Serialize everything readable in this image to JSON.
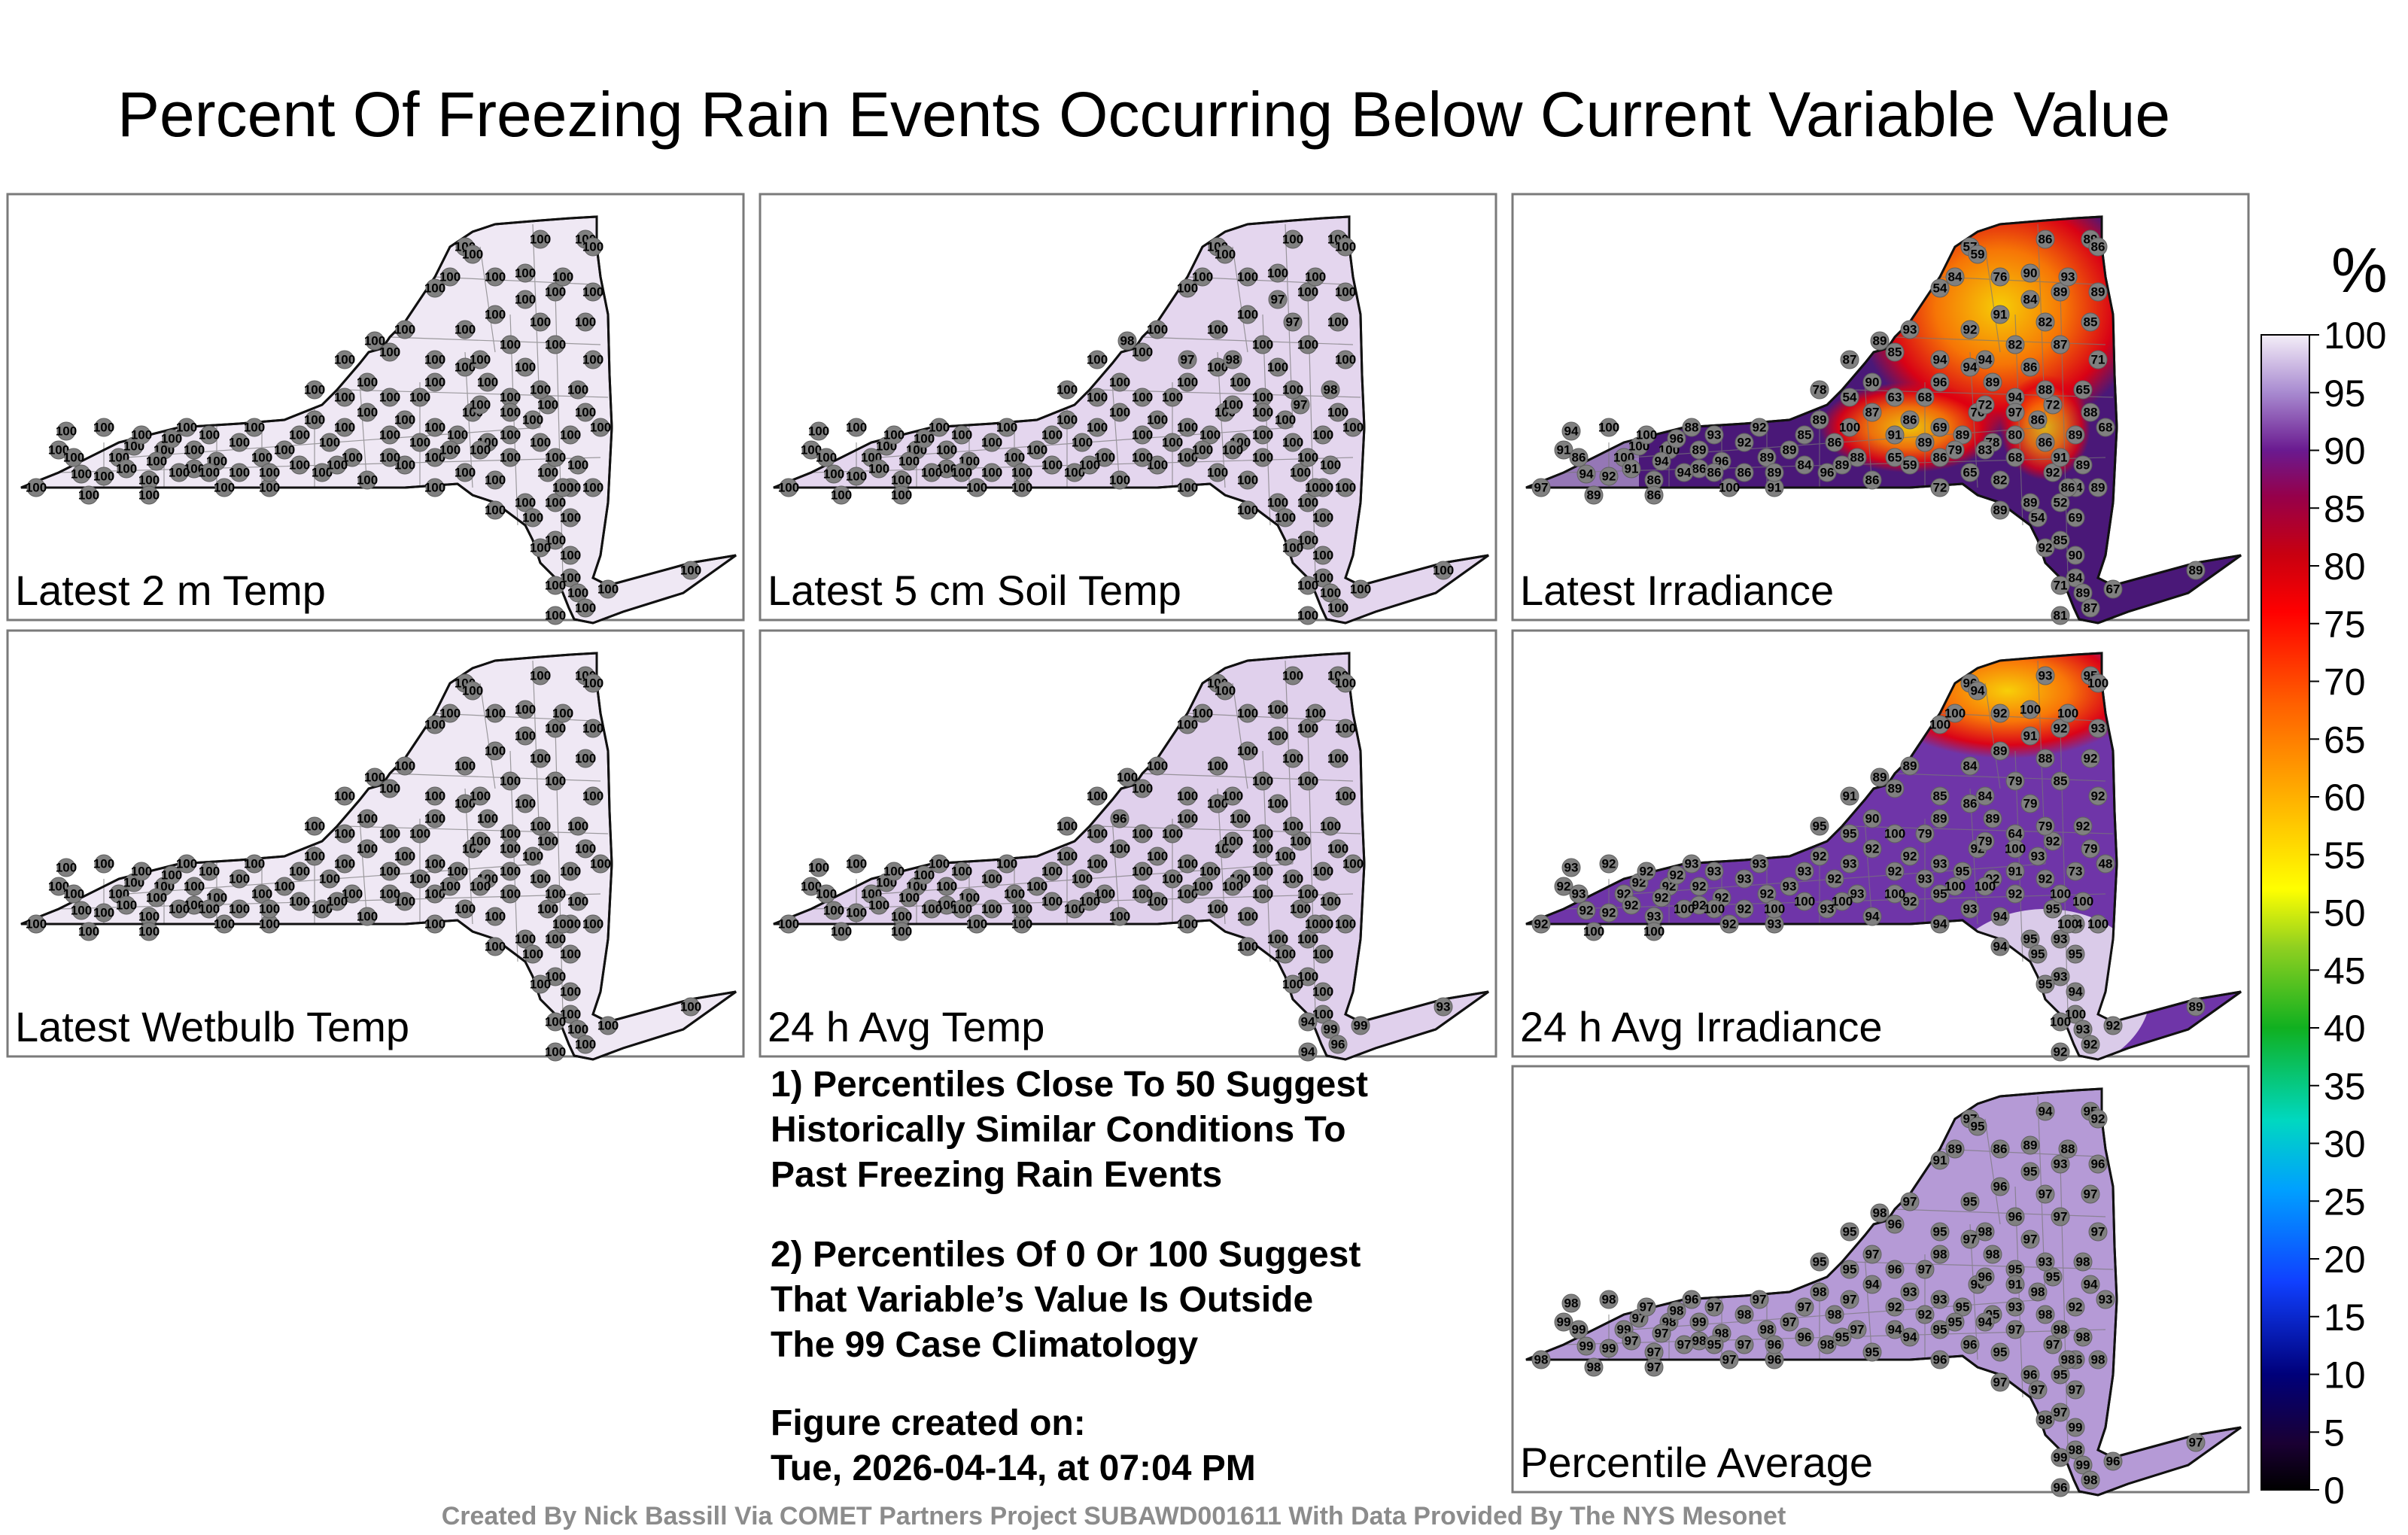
{
  "title": "Percent Of Freezing Rain Events Occurring Below Current Variable Value",
  "colorbar": {
    "unit": "%",
    "ticks": [
      100,
      95,
      90,
      85,
      80,
      75,
      70,
      65,
      60,
      55,
      50,
      45,
      40,
      35,
      30,
      25,
      20,
      15,
      10,
      5,
      0
    ]
  },
  "notes": {
    "note1": "1) Percentiles Close To 50 Suggest\nHistorically Similar Conditions To\nPast Freezing Rain Events",
    "note2": "2) Percentiles Of 0 Or 100 Suggest\nThat Variable’s Value Is Outside\nThe 99 Case Climatology",
    "created_label": "Figure created on:",
    "created_value": "Tue, 2026-04-14, at 07:04 PM"
  },
  "credit": "Created By Nick Bassill Via COMET Partners Project SUBAWD001611 With Data Provided By The NYS Mesonet",
  "chart_data": [
    {
      "type": "map",
      "label": "Latest 2 m Temp",
      "values": [
        100,
        100,
        100,
        100,
        100,
        100,
        100,
        100,
        100,
        100,
        100,
        100,
        100,
        100,
        100,
        100,
        100,
        100,
        100,
        100,
        100,
        100,
        100,
        100,
        100,
        100,
        100,
        100,
        100,
        100,
        100,
        100,
        100,
        100,
        100,
        100,
        100,
        100,
        100,
        100,
        100,
        100,
        100,
        100,
        100,
        100,
        100,
        100,
        100,
        100,
        100,
        100,
        100,
        100,
        100,
        100,
        100,
        100,
        100,
        100,
        100,
        100,
        100,
        100,
        100,
        100,
        100,
        100,
        100,
        100,
        100,
        100,
        100,
        100,
        100,
        100,
        100,
        100,
        100,
        100,
        100,
        100,
        100,
        100,
        100,
        100,
        100,
        100,
        100,
        100,
        100,
        100,
        100,
        100,
        100,
        100,
        100,
        100,
        100,
        100,
        100,
        100,
        100,
        100,
        100,
        100,
        100,
        100,
        100,
        100,
        100,
        100,
        100,
        100,
        100,
        100,
        100,
        100,
        100,
        100,
        100,
        100,
        100,
        100,
        100,
        100
      ]
    },
    {
      "type": "map",
      "label": "Latest 5 cm Soil Temp",
      "values": [
        100,
        100,
        100,
        100,
        100,
        100,
        100,
        100,
        100,
        100,
        100,
        100,
        100,
        100,
        100,
        100,
        100,
        100,
        100,
        100,
        100,
        100,
        100,
        100,
        100,
        100,
        100,
        100,
        100,
        100,
        100,
        100,
        100,
        100,
        100,
        100,
        100,
        100,
        100,
        100,
        100,
        100,
        100,
        100,
        100,
        100,
        100,
        100,
        100,
        100,
        100,
        100,
        100,
        100,
        100,
        100,
        100,
        100,
        100,
        100,
        100,
        100,
        100,
        100,
        100,
        100,
        100,
        100,
        100,
        100,
        100,
        98,
        97,
        100,
        100,
        100,
        100,
        100,
        100,
        98,
        100,
        100,
        97,
        97,
        100,
        100,
        100,
        100,
        98,
        97,
        100,
        100,
        100,
        100,
        100,
        100,
        100,
        100,
        100,
        100,
        100,
        100,
        100,
        100,
        100,
        100,
        100,
        100,
        100,
        100,
        100,
        100,
        100,
        100,
        100,
        100,
        100,
        100,
        100,
        100,
        100,
        100,
        100,
        100,
        100,
        100
      ]
    },
    {
      "type": "map",
      "label": "Latest Irradiance",
      "values": [
        97,
        94,
        92,
        94,
        91,
        86,
        100,
        100,
        100,
        91,
        100,
        100,
        94,
        86,
        96,
        88,
        89,
        86,
        93,
        96,
        100,
        92,
        92,
        89,
        86,
        91,
        89,
        85,
        89,
        86,
        100,
        88,
        96,
        86,
        87,
        91,
        86,
        89,
        69,
        59,
        86,
        89,
        76,
        78,
        65,
        72,
        82,
        68,
        86,
        86,
        92,
        89,
        89,
        54,
        52,
        54,
        69,
        85,
        92,
        90,
        84,
        71,
        89,
        87,
        81,
        67,
        89,
        90,
        87,
        85,
        93,
        89,
        94,
        92,
        91,
        82,
        94,
        96,
        89,
        94,
        86,
        87,
        82,
        84,
        89,
        89,
        85,
        71,
        65,
        72,
        88,
        89,
        68,
        88,
        94,
        72,
        68,
        63,
        54,
        78,
        57,
        59,
        86,
        89,
        86,
        84,
        54,
        76,
        90,
        93,
        97,
        80,
        83,
        79,
        65,
        89,
        84,
        89,
        86,
        94,
        86,
        89,
        91,
        89,
        86,
        89
      ]
    },
    {
      "type": "map",
      "label": "Latest Wetbulb Temp",
      "values": [
        100,
        100,
        100,
        100,
        100,
        100,
        100,
        100,
        100,
        100,
        100,
        100,
        100,
        100,
        100,
        100,
        100,
        100,
        100,
        100,
        100,
        100,
        100,
        100,
        100,
        100,
        100,
        100,
        100,
        100,
        100,
        100,
        100,
        100,
        100,
        100,
        100,
        100,
        100,
        100,
        100,
        100,
        100,
        100,
        100,
        100,
        100,
        100,
        100,
        100,
        100,
        100,
        100,
        100,
        100,
        100,
        100,
        100,
        100,
        100,
        100,
        100,
        100,
        100,
        100,
        100,
        100,
        100,
        100,
        100,
        100,
        100,
        100,
        100,
        100,
        100,
        100,
        100,
        100,
        100,
        100,
        100,
        100,
        100,
        100,
        100,
        100,
        100,
        100,
        100,
        100,
        100,
        100,
        100,
        100,
        100,
        100,
        100,
        100,
        100,
        100,
        100,
        100,
        100,
        100,
        100,
        100,
        100,
        100,
        100,
        100,
        100,
        100,
        100,
        100,
        100,
        100,
        100,
        100,
        100,
        100,
        100,
        100,
        100,
        100,
        100
      ]
    },
    {
      "type": "map",
      "label": "24 h Avg Temp",
      "values": [
        100,
        100,
        100,
        100,
        100,
        100,
        100,
        100,
        100,
        100,
        100,
        100,
        100,
        100,
        100,
        100,
        100,
        100,
        100,
        100,
        100,
        100,
        100,
        100,
        100,
        100,
        100,
        100,
        100,
        100,
        100,
        100,
        100,
        100,
        100,
        100,
        100,
        100,
        100,
        100,
        100,
        100,
        100,
        100,
        100,
        100,
        100,
        100,
        100,
        100,
        100,
        100,
        100,
        100,
        100,
        100,
        100,
        100,
        100,
        100,
        100,
        94,
        99,
        96,
        94,
        99,
        93,
        96,
        100,
        100,
        100,
        100,
        100,
        100,
        100,
        100,
        100,
        100,
        100,
        100,
        100,
        100,
        100,
        100,
        100,
        100,
        100,
        100,
        100,
        100,
        100,
        100,
        100,
        100,
        100,
        100,
        100,
        100,
        100,
        100,
        100,
        100,
        100,
        100,
        100,
        100,
        100,
        100,
        100,
        100,
        100,
        100,
        100,
        100,
        100,
        100,
        100,
        100,
        100,
        100,
        100,
        100,
        100,
        100,
        100,
        100
      ]
    },
    {
      "type": "map",
      "label": "24 h Avg Irradiance",
      "values": [
        92,
        92,
        92,
        93,
        92,
        93,
        92,
        92,
        92,
        92,
        92,
        92,
        92,
        93,
        92,
        93,
        92,
        92,
        93,
        92,
        92,
        93,
        93,
        92,
        92,
        93,
        93,
        93,
        92,
        92,
        93,
        93,
        93,
        94,
        92,
        92,
        92,
        93,
        93,
        92,
        95,
        95,
        92,
        92,
        93,
        94,
        94,
        92,
        93,
        92,
        95,
        95,
        94,
        95,
        93,
        94,
        95,
        93,
        95,
        94,
        100,
        100,
        93,
        92,
        92,
        92,
        89,
        90,
        91,
        89,
        89,
        89,
        85,
        84,
        89,
        79,
        86,
        89,
        89,
        84,
        79,
        85,
        88,
        91,
        92,
        93,
        92,
        92,
        92,
        92,
        79,
        73,
        48,
        79,
        64,
        79,
        79,
        100,
        95,
        95,
        96,
        94,
        93,
        95,
        100,
        100,
        100,
        92,
        100,
        100,
        100,
        91,
        100,
        100,
        100,
        100,
        100,
        100,
        100,
        100,
        100,
        100,
        100,
        100,
        100,
        100
      ]
    },
    {
      "type": "map",
      "label": "Percentile Average",
      "values": [
        98,
        99,
        99,
        98,
        99,
        99,
        98,
        97,
        99,
        97,
        97,
        98,
        97,
        97,
        98,
        96,
        99,
        98,
        97,
        98,
        97,
        98,
        97,
        98,
        97,
        96,
        97,
        97,
        98,
        98,
        97,
        97,
        98,
        95,
        94,
        92,
        93,
        92,
        93,
        94,
        95,
        95,
        96,
        95,
        96,
        96,
        95,
        97,
        98,
        98,
        97,
        96,
        97,
        97,
        95,
        96,
        97,
        97,
        98,
        99,
        98,
        99,
        99,
        98,
        96,
        96,
        97,
        97,
        95,
        96,
        97,
        98,
        95,
        95,
        96,
        96,
        97,
        98,
        98,
        98,
        97,
        97,
        97,
        95,
        93,
        96,
        97,
        97,
        98,
        95,
        94,
        92,
        93,
        93,
        95,
        96,
        97,
        96,
        95,
        95,
        97,
        95,
        94,
        95,
        92,
        89,
        91,
        86,
        89,
        88,
        91,
        93,
        94,
        95,
        94,
        95,
        96,
        96,
        95,
        97,
        97,
        98,
        98,
        98,
        98,
        98
      ]
    }
  ]
}
